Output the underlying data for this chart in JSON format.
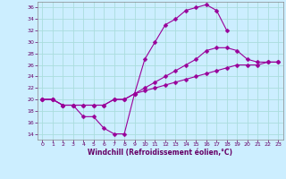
{
  "xlabel": "Windchill (Refroidissement éolien,°C)",
  "bg_color": "#cceeff",
  "grid_color": "#aadddd",
  "line_color": "#990099",
  "xlim": [
    -0.5,
    23.5
  ],
  "ylim": [
    13,
    37
  ],
  "xticks": [
    0,
    1,
    2,
    3,
    4,
    5,
    6,
    7,
    8,
    9,
    10,
    11,
    12,
    13,
    14,
    15,
    16,
    17,
    18,
    19,
    20,
    21,
    22,
    23
  ],
  "yticks": [
    14,
    16,
    18,
    20,
    22,
    24,
    26,
    28,
    30,
    32,
    34,
    36
  ],
  "curve1_x": [
    0,
    1,
    2,
    3,
    4,
    5,
    6,
    7,
    8,
    9,
    10,
    11,
    12,
    13,
    14,
    15,
    16,
    17,
    18
  ],
  "curve1_y": [
    20,
    20,
    19,
    19,
    17,
    17,
    15,
    14,
    14,
    21,
    27,
    30,
    33,
    34,
    35.5,
    36,
    36.5,
    35.5,
    32
  ],
  "curve2_x": [
    0,
    1,
    2,
    3,
    4,
    5,
    6,
    7,
    8,
    9,
    10,
    11,
    12,
    13,
    14,
    15,
    16,
    17,
    18,
    19,
    20,
    21,
    22,
    23
  ],
  "curve2_y": [
    20,
    20,
    19,
    19,
    19,
    19,
    19,
    20,
    20,
    21,
    22,
    23,
    24,
    25,
    26,
    27,
    28.5,
    29,
    29,
    28.5,
    27,
    26.5,
    26.5,
    26.5
  ],
  "curve3_x": [
    0,
    1,
    2,
    3,
    4,
    5,
    6,
    7,
    8,
    9,
    10,
    11,
    12,
    13,
    14,
    15,
    16,
    17,
    18,
    19,
    20,
    21,
    22,
    23
  ],
  "curve3_y": [
    20,
    20,
    19,
    19,
    19,
    19,
    19,
    20,
    20,
    21,
    21.5,
    22,
    22.5,
    23,
    23.5,
    24,
    24.5,
    25,
    25.5,
    26,
    26,
    26,
    26.5,
    26.5
  ]
}
